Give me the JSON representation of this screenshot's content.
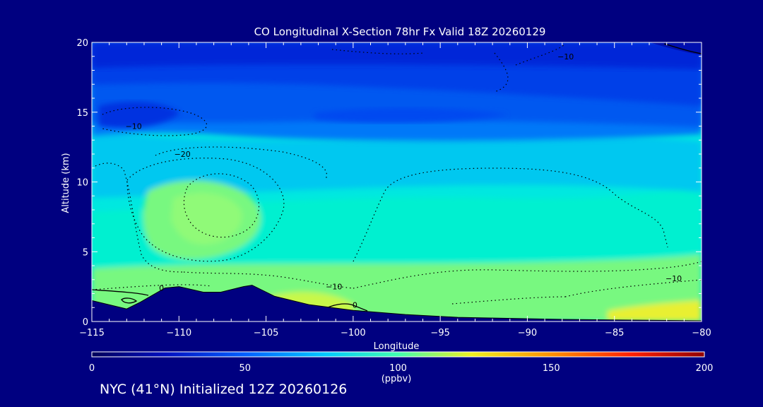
{
  "chart_data": {
    "type": "heatmap",
    "title": "CO Longitudinal X-Section 78hr  Fx Valid 18Z 20260129",
    "xlabel": "Longitude",
    "ylabel": "Altitude (km)",
    "xlim": [
      -115,
      -80
    ],
    "ylim": [
      0,
      20
    ],
    "x_ticks": [
      "−115",
      "−110",
      "−105",
      "−100",
      "−95",
      "−90",
      "−85",
      "−80"
    ],
    "y_ticks": [
      "0",
      "5",
      "10",
      "15",
      "20"
    ],
    "colorbar": {
      "range": [
        0,
        200
      ],
      "ticks": [
        "0",
        "50",
        "100",
        "150",
        "200"
      ],
      "unit": "(ppbv)"
    },
    "color_bands": [
      {
        "min_ppbv": 20,
        "max_ppbv": 30,
        "color": "#0032e0"
      },
      {
        "min_ppbv": 30,
        "max_ppbv": 40,
        "color": "#0050f0"
      },
      {
        "min_ppbv": 40,
        "max_ppbv": 50,
        "color": "#0078f8"
      },
      {
        "min_ppbv": 50,
        "max_ppbv": 60,
        "color": "#00a0f8"
      },
      {
        "min_ppbv": 60,
        "max_ppbv": 70,
        "color": "#00c8f0"
      },
      {
        "min_ppbv": 70,
        "max_ppbv": 80,
        "color": "#00e8e0"
      },
      {
        "min_ppbv": 80,
        "max_ppbv": 90,
        "color": "#40f0b0"
      },
      {
        "min_ppbv": 90,
        "max_ppbv": 100,
        "color": "#78f880"
      },
      {
        "min_ppbv": 100,
        "max_ppbv": 110,
        "color": "#b8f850"
      },
      {
        "min_ppbv": 110,
        "max_ppbv": 130,
        "color": "#f0f020"
      }
    ],
    "contour_labels": [
      {
        "text": "−10",
        "lon": -112.6,
        "alt": 14.0
      },
      {
        "text": "−20",
        "lon": -109.8,
        "alt": 12.0
      },
      {
        "text": "−10",
        "lon": -87.8,
        "alt": 19.0
      },
      {
        "text": "−10",
        "lon": -101.1,
        "alt": 2.5
      },
      {
        "text": "−10",
        "lon": -81.6,
        "alt": 3.1
      },
      {
        "text": "0",
        "lon": -111.0,
        "alt": 2.4
      },
      {
        "text": "0",
        "lon": -99.9,
        "alt": 1.2
      }
    ],
    "terrain": [
      {
        "lon": -115,
        "alt": 1.5
      },
      {
        "lon": -113,
        "alt": 0.9
      },
      {
        "lon": -112.2,
        "alt": 1.4
      },
      {
        "lon": -110.8,
        "alt": 2.4
      },
      {
        "lon": -110.0,
        "alt": 2.5
      },
      {
        "lon": -108.6,
        "alt": 2.1
      },
      {
        "lon": -107.6,
        "alt": 2.1
      },
      {
        "lon": -106.3,
        "alt": 2.5
      },
      {
        "lon": -105.8,
        "alt": 2.6
      },
      {
        "lon": -104.5,
        "alt": 1.8
      },
      {
        "lon": -102.5,
        "alt": 1.2
      },
      {
        "lon": -100.0,
        "alt": 0.8
      },
      {
        "lon": -97.0,
        "alt": 0.5
      },
      {
        "lon": -94.0,
        "alt": 0.3
      },
      {
        "lon": -88.0,
        "alt": 0.15
      },
      {
        "lon": -84.0,
        "alt": 0.1
      },
      {
        "lon": -80.0,
        "alt": 0.05
      }
    ]
  },
  "footer_text": "NYC (41°N) Initialized 12Z 20260126"
}
